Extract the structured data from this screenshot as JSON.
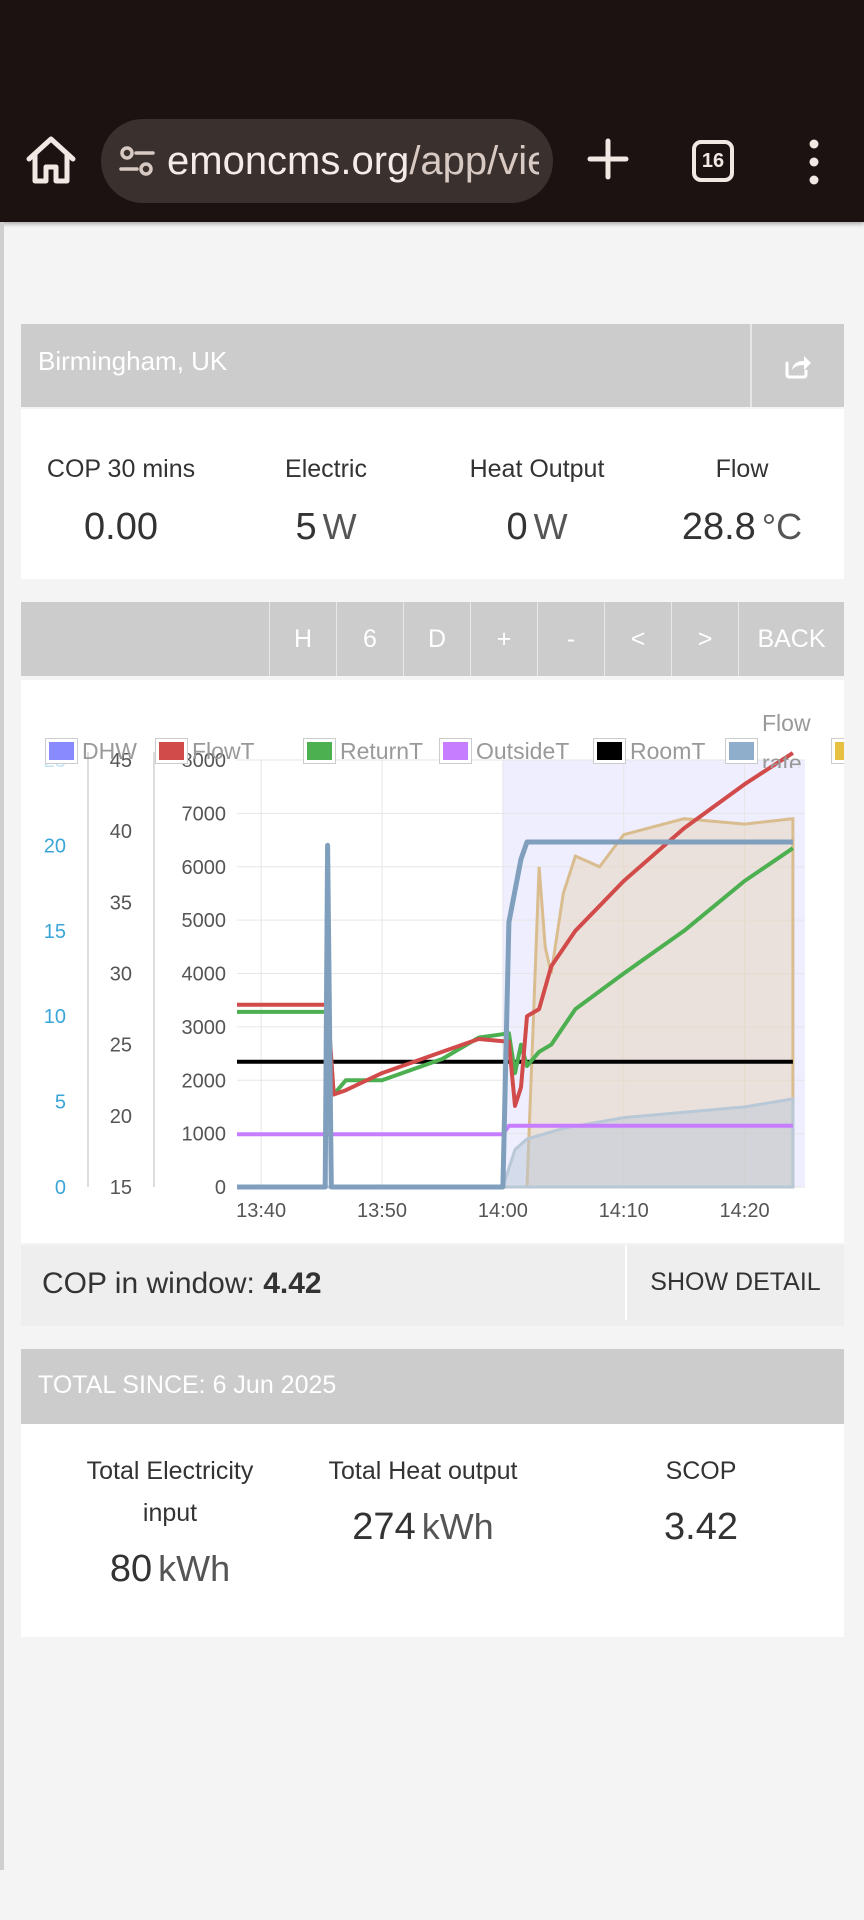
{
  "browser": {
    "url_host": "emoncms.org",
    "url_path": "/app/vie",
    "tab_count": "16"
  },
  "header": {
    "location": "Birmingham, UK"
  },
  "stats": [
    {
      "label": "COP 30 mins",
      "value": "0.00",
      "unit": ""
    },
    {
      "label": "Electric",
      "value": "5",
      "unit": "W"
    },
    {
      "label": "Heat Output",
      "value": "0",
      "unit": "W"
    },
    {
      "label": "Flow",
      "value": "28.8",
      "unit": "°C"
    }
  ],
  "toolbar": {
    "buttons": [
      "H",
      "6",
      "D",
      "+",
      "-",
      "<",
      ">",
      "BACK"
    ]
  },
  "legend": [
    {
      "name": "DHW",
      "color": "#8a8aff"
    },
    {
      "name": "FlowT",
      "color": "#d24b4b"
    },
    {
      "name": "ReturnT",
      "color": "#4caf50"
    },
    {
      "name": "OutsideT",
      "color": "#c77dff"
    },
    {
      "name": "RoomT",
      "color": "#000000"
    },
    {
      "name": "Flow rate",
      "color": "#8eaecb"
    },
    {
      "name": "",
      "color": "#e6c040"
    }
  ],
  "chart_data": {
    "type": "line",
    "x_ticks": [
      "13:40",
      "13:50",
      "14:00",
      "14:10",
      "14:20"
    ],
    "x_range": [
      "13:38",
      "14:25"
    ],
    "axes": [
      {
        "id": "left_blue",
        "ticks": [
          0,
          5,
          10,
          15,
          20,
          25
        ],
        "range": [
          0,
          25
        ]
      },
      {
        "id": "temperature",
        "ticks": [
          15,
          20,
          25,
          30,
          35,
          40,
          45
        ],
        "range": [
          15,
          45
        ]
      },
      {
        "id": "power",
        "ticks": [
          0,
          1000,
          2000,
          3000,
          4000,
          5000,
          6000,
          7000,
          8000
        ],
        "range": [
          0,
          8000
        ]
      }
    ],
    "dhw_band": {
      "from": "14:00",
      "to": "14:25"
    },
    "series": [
      {
        "name": "FlowT",
        "axis": "temperature",
        "points": [
          [
            "13:38",
            27.8
          ],
          [
            "13:45.5",
            27.8
          ],
          [
            "13:46",
            21.5
          ],
          [
            "13:47",
            21.8
          ],
          [
            "13:50",
            23.0
          ],
          [
            "13:55",
            24.5
          ],
          [
            "13:58",
            25.4
          ],
          [
            "14:00.5",
            25.2
          ],
          [
            "14:01",
            20.7
          ],
          [
            "14:01.5",
            22.0
          ],
          [
            "14:02",
            27.0
          ],
          [
            "14:03",
            27.5
          ],
          [
            "14:04",
            30.5
          ],
          [
            "14:06",
            33.0
          ],
          [
            "14:10",
            36.5
          ],
          [
            "14:15",
            40.2
          ],
          [
            "14:20",
            43.3
          ],
          [
            "14:24",
            45.5
          ]
        ]
      },
      {
        "name": "ReturnT",
        "axis": "temperature",
        "points": [
          [
            "13:38",
            27.3
          ],
          [
            "13:45.5",
            27.3
          ],
          [
            "13:46",
            21.5
          ],
          [
            "13:47",
            22.5
          ],
          [
            "13:50",
            22.5
          ],
          [
            "13:55",
            24.0
          ],
          [
            "13:58",
            25.5
          ],
          [
            "14:00.5",
            25.8
          ],
          [
            "14:01",
            23.0
          ],
          [
            "14:01.5",
            25.0
          ],
          [
            "14:02",
            23.5
          ],
          [
            "14:03",
            24.5
          ],
          [
            "14:04",
            25.0
          ],
          [
            "14:06",
            27.5
          ],
          [
            "14:10",
            30.0
          ],
          [
            "14:15",
            33.0
          ],
          [
            "14:20",
            36.5
          ],
          [
            "14:24",
            38.8
          ]
        ]
      },
      {
        "name": "RoomT",
        "axis": "temperature",
        "points": [
          [
            "13:38",
            23.8
          ],
          [
            "14:24",
            23.8
          ]
        ]
      },
      {
        "name": "OutsideT",
        "axis": "temperature",
        "points": [
          [
            "13:38",
            18.7
          ],
          [
            "14:00",
            18.7
          ],
          [
            "14:00.5",
            19.3
          ],
          [
            "14:24",
            19.3
          ]
        ]
      },
      {
        "name": "Flow rate",
        "axis": "left_blue",
        "points": [
          [
            "13:38",
            0
          ],
          [
            "13:45.3",
            0
          ],
          [
            "13:45.5",
            20
          ],
          [
            "13:45.8",
            0
          ],
          [
            "14:00",
            0
          ],
          [
            "14:00.5",
            15.5
          ],
          [
            "14:01.5",
            19.2
          ],
          [
            "14:02",
            20.2
          ],
          [
            "14:05",
            20.2
          ],
          [
            "14:24",
            20.2
          ]
        ]
      },
      {
        "name": "Electric",
        "axis": "power",
        "points": [
          [
            "13:38",
            0
          ],
          [
            "14:00",
            0
          ],
          [
            "14:01",
            700
          ],
          [
            "14:02",
            900
          ],
          [
            "14:05",
            1100
          ],
          [
            "14:10",
            1300
          ],
          [
            "14:15",
            1400
          ],
          [
            "14:20",
            1500
          ],
          [
            "14:24",
            1650
          ]
        ]
      },
      {
        "name": "Heat output",
        "axis": "power",
        "points": [
          [
            "13:38",
            0
          ],
          [
            "14:02",
            0
          ],
          [
            "14:02.5",
            3000
          ],
          [
            "14:03",
            6000
          ],
          [
            "14:03.5",
            4500
          ],
          [
            "14:04",
            4000
          ],
          [
            "14:05",
            5500
          ],
          [
            "14:06",
            6200
          ],
          [
            "14:08",
            6000
          ],
          [
            "14:10",
            6600
          ],
          [
            "14:15",
            6900
          ],
          [
            "14:20",
            6800
          ],
          [
            "14:24",
            6900
          ]
        ]
      }
    ]
  },
  "cop_window": {
    "label": "COP in window:",
    "value": "4.42",
    "detail_button": "SHOW DETAIL"
  },
  "totals": {
    "header": "TOTAL SINCE: 6 Jun 2025",
    "items": [
      {
        "label_line1": "Total Electricity",
        "label_line2": "input",
        "value": "80",
        "unit": "kWh"
      },
      {
        "label_line1": "Total Heat output",
        "label_line2": "",
        "value": "274",
        "unit": "kWh"
      },
      {
        "label_line1": "SCOP",
        "label_line2": "",
        "value": "3.42",
        "unit": ""
      }
    ]
  }
}
